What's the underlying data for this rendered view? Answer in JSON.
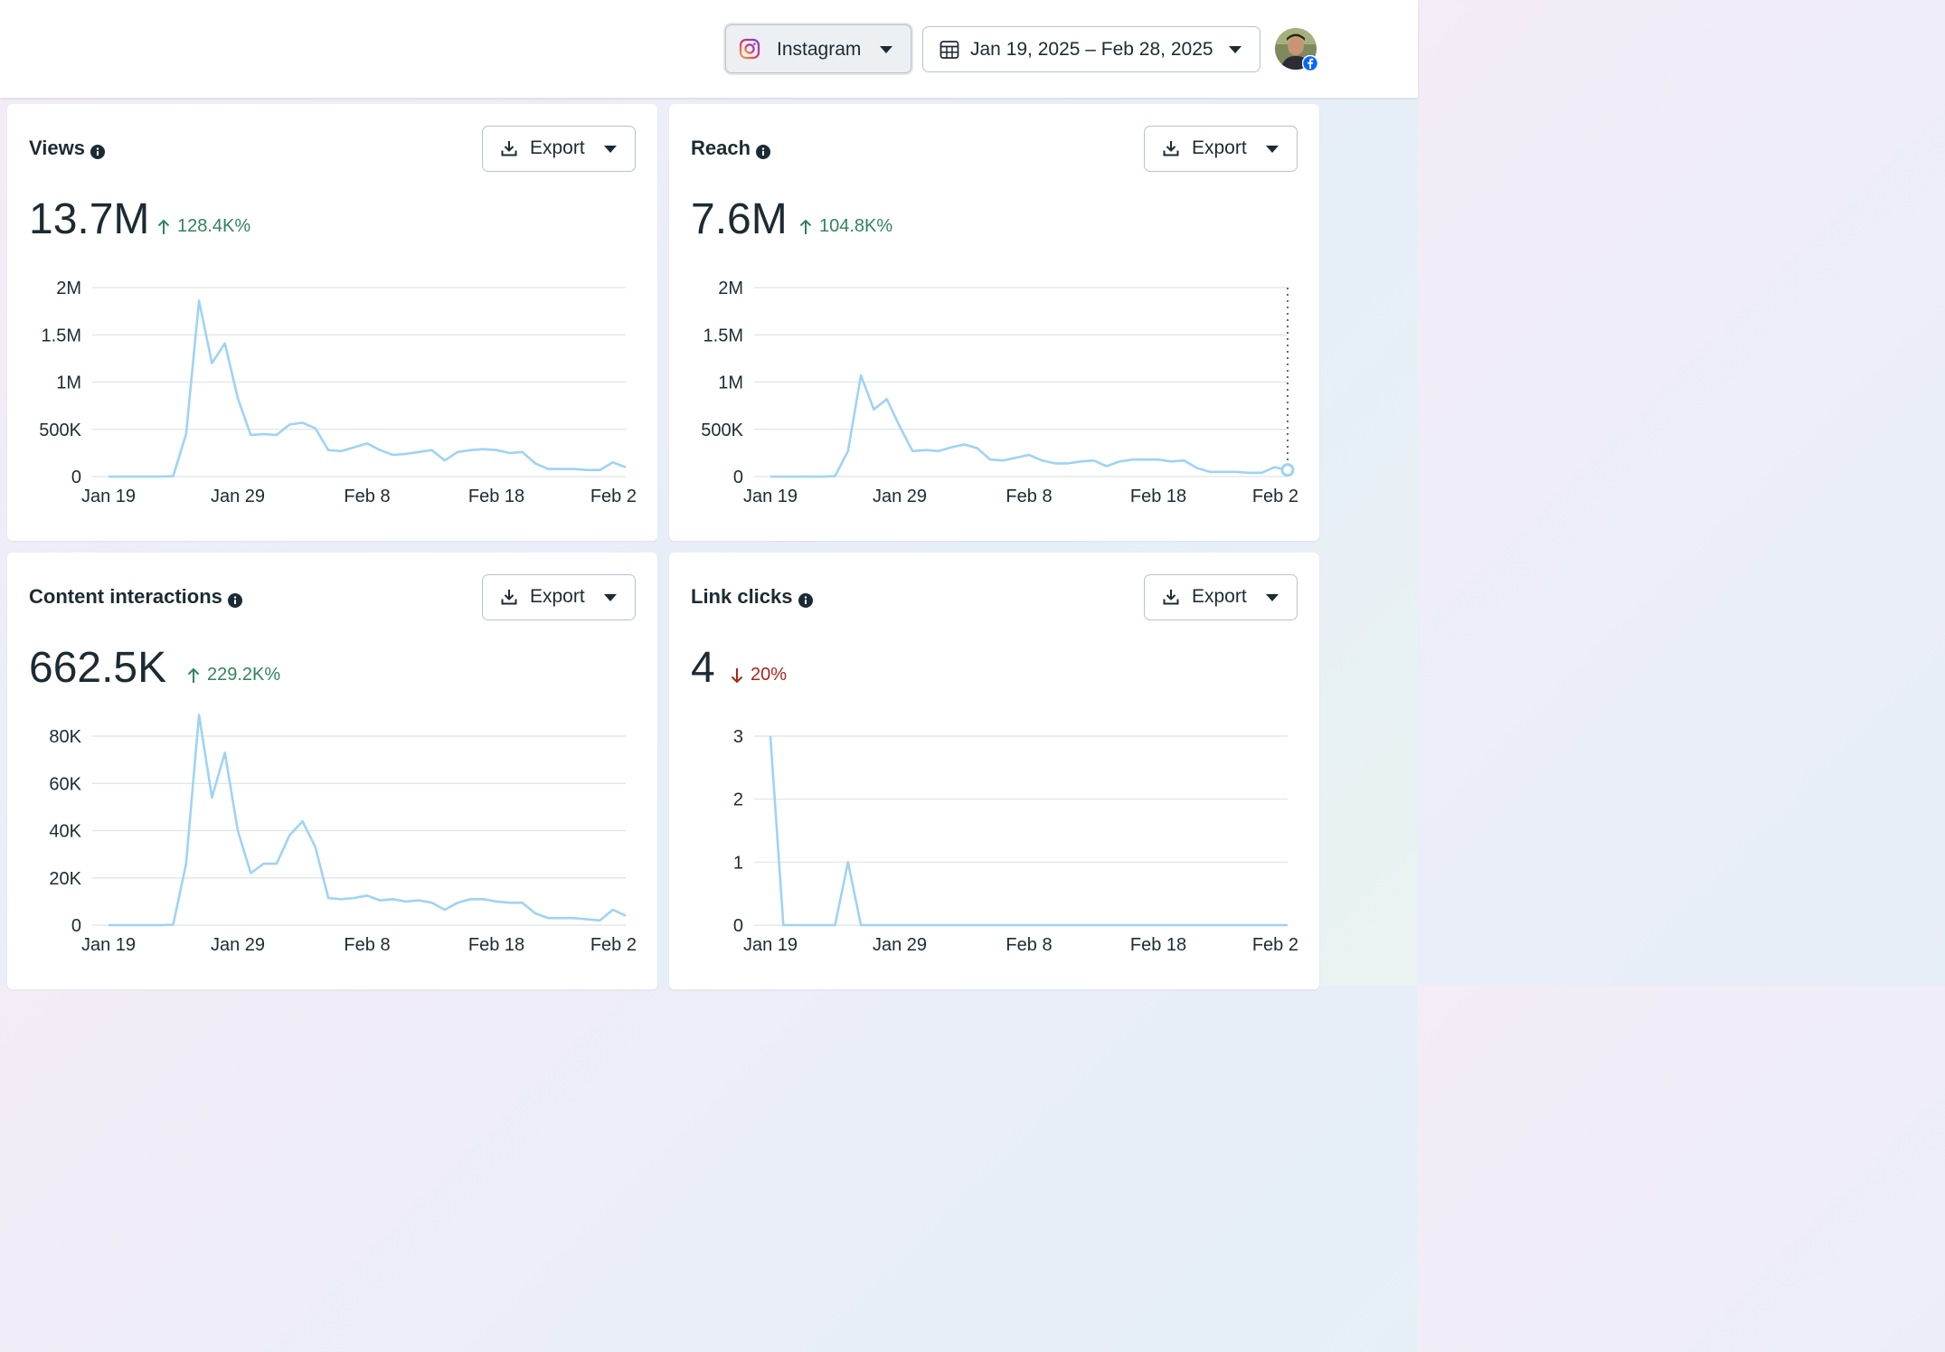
{
  "header": {
    "platform": "Instagram",
    "date_range": "Jan 19, 2025 – Feb 28, 2025"
  },
  "colors": {
    "line": "#9ed3f5",
    "grid": "#dfe3e8",
    "up": "#31845c",
    "down": "#a8261c"
  },
  "export_label": "Export",
  "cards": [
    {
      "title": "Views",
      "value": "13.7M",
      "delta": "128.4K%",
      "direction": "up"
    },
    {
      "title": "Reach",
      "value": "7.6M",
      "delta": "104.8K%",
      "direction": "up"
    },
    {
      "title": "Content interactions",
      "value": "662.5K",
      "delta": "229.2K%",
      "direction": "up"
    },
    {
      "title": "Link clicks",
      "value": "4",
      "delta": "20%",
      "direction": "down"
    }
  ],
  "chart_data": [
    {
      "type": "line",
      "title": "Views",
      "x_tick_labels": [
        "Jan 19",
        "Jan 29",
        "Feb 8",
        "Feb 18",
        "Feb 2"
      ],
      "y_tick_labels": [
        "0",
        "500K",
        "1M",
        "1.5M",
        "2M"
      ],
      "ylim": [
        0,
        2000000
      ],
      "x_range": [
        0,
        40
      ],
      "series": [
        {
          "name": "Views",
          "values": [
            0,
            0,
            0,
            0,
            0,
            5000,
            450000,
            1860000,
            1200000,
            1410000,
            830000,
            440000,
            450000,
            440000,
            550000,
            570000,
            510000,
            280000,
            270000,
            310000,
            350000,
            280000,
            230000,
            240000,
            260000,
            280000,
            170000,
            260000,
            280000,
            290000,
            280000,
            250000,
            260000,
            140000,
            80000,
            80000,
            80000,
            70000,
            70000,
            150000,
            100000
          ]
        }
      ]
    },
    {
      "type": "line",
      "title": "Reach",
      "x_tick_labels": [
        "Jan 19",
        "Jan 29",
        "Feb 8",
        "Feb 18",
        "Feb 2"
      ],
      "y_tick_labels": [
        "0",
        "500K",
        "1M",
        "1.5M",
        "2M"
      ],
      "ylim": [
        0,
        2000000
      ],
      "x_range": [
        0,
        40
      ],
      "series": [
        {
          "name": "Reach",
          "values": [
            0,
            0,
            0,
            0,
            0,
            5000,
            270000,
            1070000,
            710000,
            820000,
            530000,
            270000,
            280000,
            270000,
            310000,
            340000,
            300000,
            180000,
            170000,
            200000,
            230000,
            170000,
            140000,
            140000,
            160000,
            170000,
            110000,
            160000,
            180000,
            180000,
            180000,
            160000,
            170000,
            90000,
            50000,
            50000,
            50000,
            40000,
            40000,
            100000,
            70000
          ]
        }
      ]
    },
    {
      "type": "line",
      "title": "Content interactions",
      "x_tick_labels": [
        "Jan 19",
        "Jan 29",
        "Feb 8",
        "Feb 18",
        "Feb 2"
      ],
      "y_tick_labels": [
        "0",
        "20K",
        "40K",
        "60K",
        "80K"
      ],
      "ylim": [
        0,
        80000
      ],
      "x_range": [
        0,
        40
      ],
      "series": [
        {
          "name": "Content interactions",
          "values": [
            0,
            0,
            0,
            0,
            0,
            200,
            26000,
            89000,
            54000,
            73000,
            40000,
            22000,
            26000,
            26000,
            38000,
            44000,
            33000,
            11500,
            11000,
            11500,
            12500,
            10500,
            11000,
            10000,
            10500,
            9500,
            6500,
            9500,
            11000,
            11000,
            10000,
            9500,
            9500,
            5000,
            3000,
            3000,
            3000,
            2500,
            2000,
            6500,
            4000
          ]
        }
      ]
    },
    {
      "type": "line",
      "title": "Link clicks",
      "x_tick_labels": [
        "Jan 19",
        "Jan 29",
        "Feb 8",
        "Feb 18",
        "Feb 2"
      ],
      "y_tick_labels": [
        "0",
        "1",
        "2",
        "3"
      ],
      "ylim": [
        0,
        3
      ],
      "x_range": [
        0,
        40
      ],
      "series": [
        {
          "name": "Link clicks",
          "values": [
            3,
            0,
            0,
            0,
            0,
            0,
            1,
            0,
            0,
            0,
            0,
            0,
            0,
            0,
            0,
            0,
            0,
            0,
            0,
            0,
            0,
            0,
            0,
            0,
            0,
            0,
            0,
            0,
            0,
            0,
            0,
            0,
            0,
            0,
            0,
            0,
            0,
            0,
            0,
            0,
            0
          ]
        }
      ]
    }
  ]
}
